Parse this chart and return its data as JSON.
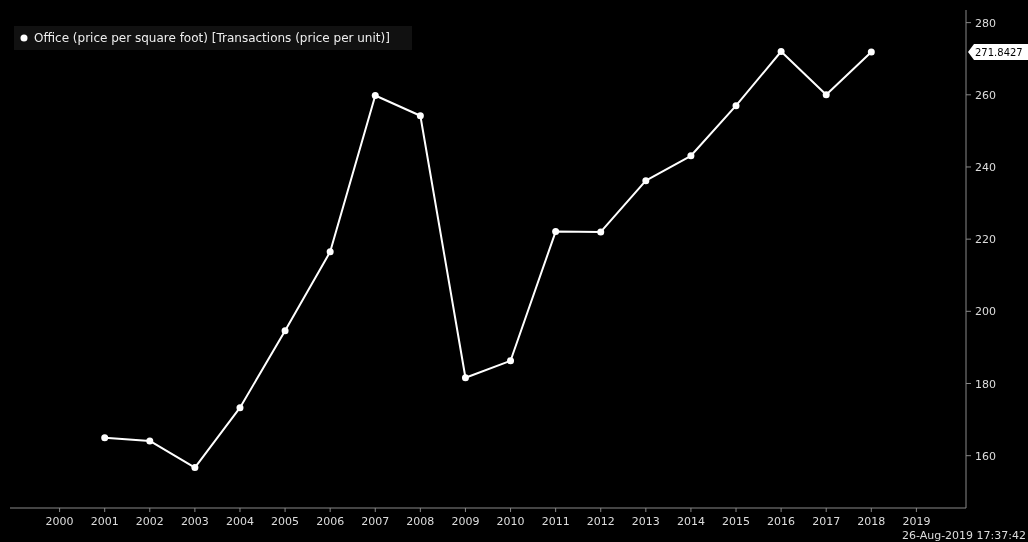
{
  "chart_data": {
    "type": "line",
    "x": [
      2001,
      2002,
      2003,
      2004,
      2005,
      2006,
      2007,
      2008,
      2009,
      2010,
      2011,
      2012,
      2013,
      2014,
      2015,
      2016,
      2017,
      2018
    ],
    "series": [
      {
        "name": "Office (price per square foot) [Transactions (price per unit)]",
        "color": "#ffffff",
        "values": [
          165,
          164.1,
          156.7,
          173.3,
          194.6,
          216.5,
          259.8,
          254.2,
          181.6,
          186.3,
          222.1,
          222,
          236.2,
          243.1,
          257,
          272,
          260,
          271.8427
        ]
      }
    ],
    "xlim": [
      1998.9,
      2020.1
    ],
    "xticks": [
      2000,
      2001,
      2002,
      2003,
      2004,
      2005,
      2006,
      2007,
      2008,
      2009,
      2010,
      2011,
      2012,
      2013,
      2014,
      2015,
      2016,
      2017,
      2018,
      2019
    ],
    "ylim": [
      145.5,
      283.5
    ],
    "yticks": [
      160,
      180,
      200,
      220,
      240,
      260,
      280
    ],
    "marker": "circle",
    "line_style": "solid",
    "grid": false,
    "legend": "top left",
    "annotations": [
      "271.8427",
      "26-Aug-2019 17:37:42"
    ]
  }
}
